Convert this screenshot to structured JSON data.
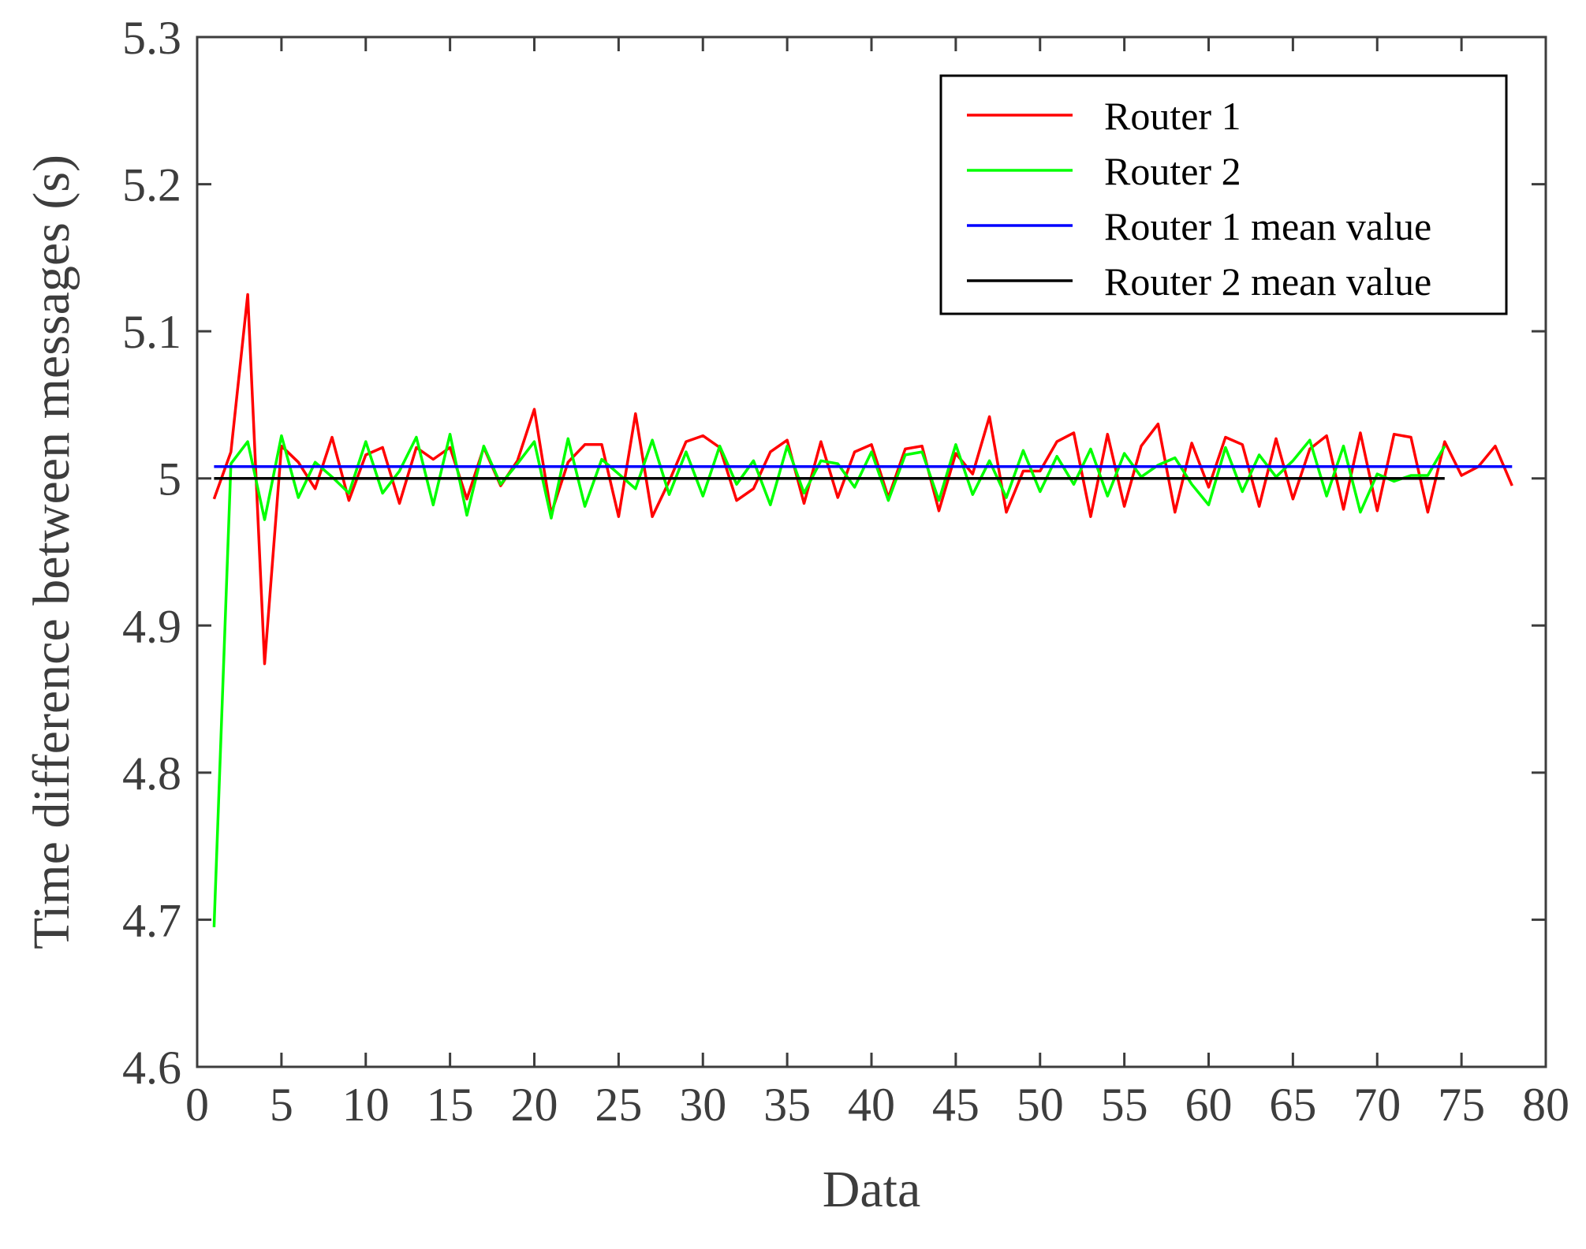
{
  "chart_data": {
    "type": "line",
    "title": "",
    "xlabel": "Data",
    "ylabel": "Time difference between messages (s)",
    "xlim": [
      0,
      80
    ],
    "ylim": [
      4.6,
      5.3
    ],
    "xticks": [
      0,
      5,
      10,
      15,
      20,
      25,
      30,
      35,
      40,
      45,
      50,
      55,
      60,
      65,
      70,
      75,
      80
    ],
    "yticks": [
      4.6,
      4.7,
      4.8,
      4.9,
      5.0,
      5.1,
      5.2,
      5.3
    ],
    "xtick_labels": [
      "0",
      "5",
      "10",
      "15",
      "20",
      "25",
      "30",
      "35",
      "40",
      "45",
      "50",
      "55",
      "60",
      "65",
      "70",
      "75",
      "80"
    ],
    "ytick_labels": [
      "4.6",
      "4.7",
      "4.8",
      "4.9",
      "5",
      "5.1",
      "5.2",
      "5.3"
    ],
    "grid": false,
    "legend_position": "top-right",
    "series": [
      {
        "name": "Router 1",
        "color": "#ff0000",
        "x": [
          1,
          2,
          3,
          4,
          5,
          6,
          7,
          8,
          9,
          10,
          11,
          12,
          13,
          14,
          15,
          16,
          17,
          18,
          19,
          20,
          21,
          22,
          23,
          24,
          25,
          26,
          27,
          28,
          29,
          30,
          31,
          32,
          33,
          34,
          35,
          36,
          37,
          38,
          39,
          40,
          41,
          42,
          43,
          44,
          45,
          46,
          47,
          48,
          49,
          50,
          51,
          52,
          53,
          54,
          55,
          56,
          57,
          58,
          59,
          60,
          61,
          62,
          63,
          64,
          65,
          66,
          67,
          68,
          69,
          70,
          71,
          72,
          73,
          74,
          75,
          76,
          77,
          78
        ],
        "values": [
          4.986,
          5.018,
          5.125,
          4.874,
          5.022,
          5.011,
          4.993,
          5.028,
          4.985,
          5.016,
          5.021,
          4.983,
          5.021,
          5.013,
          5.021,
          4.986,
          5.021,
          4.995,
          5.012,
          5.047,
          4.976,
          5.011,
          5.023,
          5.023,
          4.974,
          5.044,
          4.974,
          4.998,
          5.025,
          5.029,
          5.021,
          4.985,
          4.993,
          5.018,
          5.026,
          4.983,
          5.025,
          4.987,
          5.018,
          5.023,
          4.987,
          5.02,
          5.022,
          4.978,
          5.017,
          5.003,
          5.042,
          4.977,
          5.005,
          5.005,
          5.025,
          5.031,
          4.974,
          5.03,
          4.981,
          5.022,
          5.037,
          4.977,
          5.024,
          4.994,
          5.028,
          5.023,
          4.981,
          5.027,
          4.986,
          5.02,
          5.029,
          4.979,
          5.031,
          4.978,
          5.03,
          5.028,
          4.977,
          5.025,
          5.002,
          5.008,
          5.022,
          4.995
        ]
      },
      {
        "name": "Router 2",
        "color": "#00ff00",
        "x": [
          1,
          2,
          3,
          4,
          5,
          6,
          7,
          8,
          9,
          10,
          11,
          12,
          13,
          14,
          15,
          16,
          17,
          18,
          19,
          20,
          21,
          22,
          23,
          24,
          25,
          26,
          27,
          28,
          29,
          30,
          31,
          32,
          33,
          34,
          35,
          36,
          37,
          38,
          39,
          40,
          41,
          42,
          43,
          44,
          45,
          46,
          47,
          48,
          49,
          50,
          51,
          52,
          53,
          54,
          55,
          56,
          57,
          58,
          59,
          60,
          61,
          62,
          63,
          64,
          65,
          66,
          67,
          68,
          69,
          70,
          71,
          72,
          73,
          74
        ],
        "values": [
          4.695,
          5.01,
          5.025,
          4.972,
          5.029,
          4.987,
          5.011,
          5.001,
          4.99,
          5.025,
          4.99,
          5.005,
          5.028,
          4.982,
          5.03,
          4.975,
          5.022,
          4.996,
          5.01,
          5.025,
          4.973,
          5.027,
          4.981,
          5.013,
          5.003,
          4.993,
          5.026,
          4.989,
          5.018,
          4.988,
          5.022,
          4.996,
          5.012,
          4.982,
          5.022,
          4.99,
          5.012,
          5.01,
          4.994,
          5.018,
          4.985,
          5.016,
          5.018,
          4.985,
          5.023,
          4.989,
          5.012,
          4.987,
          5.019,
          4.991,
          5.015,
          4.996,
          5.02,
          4.988,
          5.017,
          5.001,
          5.009,
          5.014,
          4.996,
          4.982,
          5.021,
          4.991,
          5.016,
          5.001,
          5.012,
          5.026,
          4.988,
          5.022,
          4.977,
          5.003,
          4.998,
          5.002,
          5.002,
          5.022
        ]
      },
      {
        "name": "Router 1 mean value",
        "color": "#0000ff",
        "x": [
          1,
          78
        ],
        "values": [
          5.008,
          5.008
        ]
      },
      {
        "name": "Router 2 mean value",
        "color": "#000000",
        "x": [
          1,
          74
        ],
        "values": [
          5.0,
          5.0
        ]
      }
    ]
  }
}
